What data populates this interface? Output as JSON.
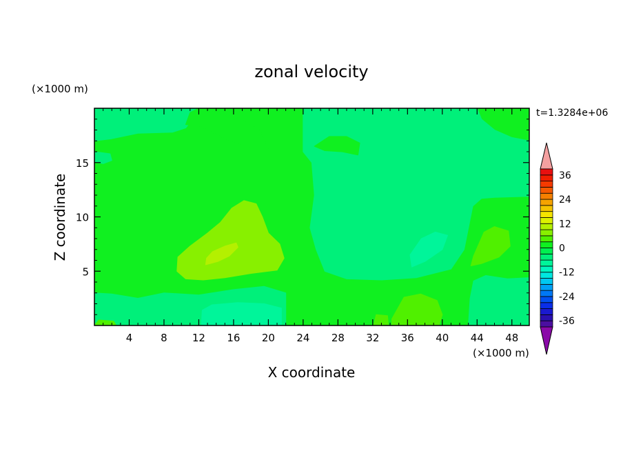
{
  "chart_data": {
    "type": "heatmap",
    "title": "zonal velocity",
    "xlabel": "X coordinate",
    "ylabel": "Z coordinate",
    "x_unit": "(×1000 m)",
    "y_unit": "(×1000 m)",
    "time_label": "t=1.3284e+06",
    "xlim": [
      0,
      50
    ],
    "ylim": [
      0,
      20
    ],
    "x_ticks": [
      4,
      8,
      12,
      16,
      20,
      24,
      28,
      32,
      36,
      40,
      44,
      48
    ],
    "y_ticks": [
      5,
      10,
      15
    ],
    "colorbar": {
      "levels": [
        -42,
        -39,
        -36,
        -33,
        -30,
        -27,
        -24,
        -21,
        -18,
        -15,
        -12,
        -9,
        -6,
        -3,
        0,
        3,
        6,
        9,
        12,
        15,
        18,
        21,
        24,
        27,
        30,
        33,
        36,
        39,
        42
      ],
      "tick_labels": [
        "36",
        "24",
        "12",
        "0",
        "-12",
        "-24",
        "-36"
      ],
      "tick_values": [
        36,
        24,
        12,
        0,
        -12,
        -24,
        -36
      ],
      "colors": [
        "#8a0aa8",
        "#4b0fa0",
        "#2a10b0",
        "#1a1ad0",
        "#0a2ee8",
        "#0050f0",
        "#0078f5",
        "#00a0f5",
        "#00c8f0",
        "#00e8e0",
        "#00f5c0",
        "#00f59a",
        "#00f07a",
        "#00f050",
        "#10f020",
        "#50f000",
        "#88f000",
        "#b4f000",
        "#dcf000",
        "#f5e400",
        "#f5c400",
        "#f5a400",
        "#f58000",
        "#f55a00",
        "#f53a00",
        "#f01e00",
        "#e81010",
        "#f4a0a0"
      ],
      "extend": "both"
    },
    "field_regions": [
      {
        "value": 1.5,
        "shape": "background"
      },
      {
        "value": -4.5,
        "shape": "upper-right dome",
        "x": [
          24,
          45
        ],
        "z": [
          4,
          20
        ]
      },
      {
        "value": -4.5,
        "shape": "top-left band",
        "x": [
          0,
          20
        ],
        "z": [
          16,
          20
        ]
      },
      {
        "value": 1.5,
        "shape": "upper-left bump",
        "x": [
          10,
          20
        ],
        "z": [
          16,
          20
        ]
      },
      {
        "value": 1.5,
        "shape": "small patch",
        "x": [
          25,
          31
        ],
        "z": [
          15.5,
          17.5
        ]
      },
      {
        "value": -4.5,
        "shape": "small patch",
        "x": [
          0,
          2
        ],
        "z": [
          15,
          16
        ]
      },
      {
        "value": 7.5,
        "shape": "central lobe",
        "x": [
          9,
          22
        ],
        "z": [
          4,
          11.5
        ]
      },
      {
        "value": 10.5,
        "shape": "core",
        "x": [
          13,
          17
        ],
        "z": [
          5.5,
          7.5
        ]
      },
      {
        "value": -7.5,
        "shape": "small patch",
        "x": [
          36,
          41
        ],
        "z": [
          5,
          8.5
        ]
      },
      {
        "value": 4.5,
        "shape": "right lobe",
        "x": [
          43,
          48
        ],
        "z": [
          5.5,
          9
        ]
      },
      {
        "value": -4.5,
        "shape": "lower-left band",
        "x": [
          0,
          22
        ],
        "z": [
          0,
          3
        ]
      },
      {
        "value": -7.5,
        "shape": "bottom patch",
        "x": [
          12,
          22
        ],
        "z": [
          0,
          2
        ]
      },
      {
        "value": -4.5,
        "shape": "bottom-right block",
        "x": [
          43,
          50
        ],
        "z": [
          0,
          4.5
        ]
      },
      {
        "value": 4.5,
        "shape": "bottom lobe",
        "x": [
          34,
          40
        ],
        "z": [
          0,
          3
        ]
      },
      {
        "value": 4.5,
        "shape": "small patch",
        "x": [
          0,
          3
        ],
        "z": [
          0,
          0.5
        ]
      },
      {
        "value": 4.5,
        "shape": "small patch",
        "x": [
          32,
          34
        ],
        "z": [
          0,
          1
        ]
      }
    ]
  }
}
